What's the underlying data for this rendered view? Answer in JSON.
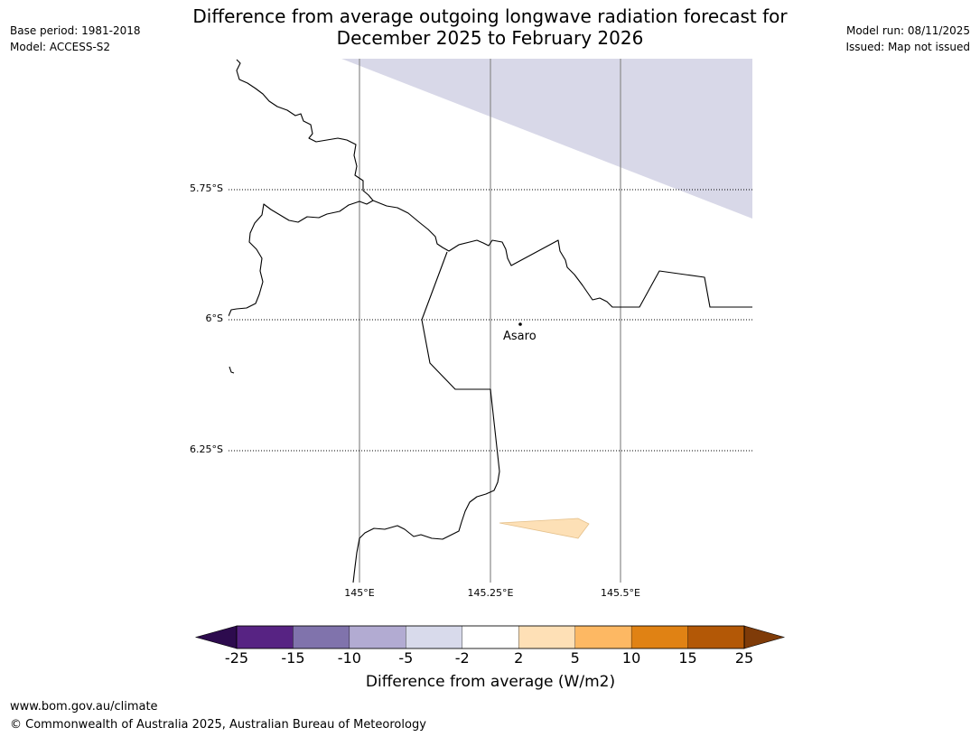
{
  "header": {
    "title_line1": "Difference from average outgoing longwave radiation forecast for",
    "title_line2": "December 2025 to February 2026",
    "base_period": "Base period: 1981-2018",
    "model": "Model: ACCESS-S2",
    "model_run": "Model run: 08/11/2025",
    "issued": "Issued: Map not issued"
  },
  "map": {
    "latitude_labels": [
      "5.75°S",
      "6°S",
      "6.25°S"
    ],
    "longitude_labels": [
      "145°E",
      "145.25°E",
      "145.5°E"
    ],
    "place": {
      "name": "Asaro"
    },
    "region_colors": {
      "lavender": "#d8d8e8",
      "light_orange": "#fde0b6"
    },
    "outline_color": "#000000"
  },
  "colorbar": {
    "title": "Difference from average (W/m2)",
    "tick_labels": [
      "-25",
      "-15",
      "-10",
      "-5",
      "-2",
      "2",
      "5",
      "10",
      "15",
      "25"
    ],
    "colors": [
      "#2d0b4e",
      "#572383",
      "#8073ac",
      "#b2abd2",
      "#d8daeb",
      "#ffffff",
      "#fee0b6",
      "#fdb863",
      "#e08214",
      "#b35806",
      "#7f3b08"
    ]
  },
  "footer": {
    "url": "www.bom.gov.au/climate",
    "copyright": "© Commonwealth of Australia 2025, Australian Bureau of Meteorology"
  }
}
